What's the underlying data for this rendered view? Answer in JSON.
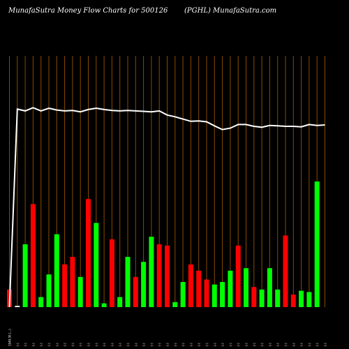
{
  "header": {
    "title_left": "MunafaSutra  Money Flow  Charts for 500126",
    "title_right": "(PGHL) MunafaSutra.com"
  },
  "chart_data": {
    "type": "bar",
    "categories": [
      "Date 1",
      "Date 2",
      "Date 3",
      "Date 4",
      "Date 5",
      "Date 6",
      "Date 7",
      "Date 8",
      "Date 9",
      "Date 10",
      "Date 11",
      "Date 12",
      "Date 13",
      "Date 14",
      "Date 15",
      "Date 16",
      "Date 17",
      "Date 18",
      "Date 19",
      "Date 20",
      "Date 21",
      "Date 22",
      "Date 23",
      "Date 24",
      "Date 25",
      "Date 26",
      "Date 27",
      "Date 28",
      "Date 29",
      "Date 30",
      "Date 31",
      "Date 32",
      "Date 33",
      "Date 34",
      "Date 35",
      "Date 36",
      "Date 37",
      "Date 38",
      "Date 39",
      "Date 40",
      "Date 41"
    ],
    "colors": [
      "red",
      "white",
      "green",
      "red",
      "green",
      "green",
      "green",
      "red",
      "red",
      "green",
      "red",
      "green",
      "green",
      "red",
      "green",
      "green",
      "red",
      "green",
      "green",
      "red",
      "red",
      "green",
      "green",
      "red",
      "red",
      "red",
      "green",
      "green",
      "green",
      "red",
      "green",
      "red",
      "green",
      "green",
      "green",
      "red",
      "red",
      "green",
      "green",
      "green",
      "red"
    ],
    "values": [
      0.07,
      0.005,
      0.25,
      0.41,
      0.04,
      0.13,
      0.29,
      0.17,
      0.2,
      0.12,
      0.43,
      0.335,
      0.015,
      0.27,
      0.04,
      0.2,
      0.12,
      0.18,
      0.28,
      0.25,
      0.245,
      0.02,
      0.1,
      0.17,
      0.145,
      0.11,
      0.09,
      0.1,
      0.145,
      0.245,
      0.155,
      0.08,
      0.07,
      0.155,
      0.07,
      0.285,
      0.05,
      0.065,
      0.06,
      0.5,
      0.0
    ],
    "price_line": [
      0.35,
      0.56,
      0.58,
      0.545,
      0.58,
      0.55,
      0.57,
      0.58,
      0.575,
      0.59,
      0.565,
      0.55,
      0.565,
      0.575,
      0.58,
      0.575,
      0.58,
      0.585,
      0.59,
      0.58,
      0.625,
      0.645,
      0.67,
      0.695,
      0.69,
      0.7,
      0.745,
      0.785,
      0.77,
      0.73,
      0.73,
      0.75,
      0.76,
      0.74,
      0.745,
      0.75,
      0.75,
      0.755,
      0.73,
      0.74,
      0.735
    ],
    "x_labels": [
      "1949.30 (...)",
      "(-)",
      "(-)",
      "(-)",
      "(-)",
      "(-)",
      "(-)",
      "(-)",
      "(-)",
      "(-)",
      "(-)",
      "(-)",
      "(-)",
      "(-)",
      "(-)",
      "(-)",
      "(-)",
      "(-)",
      "(-)",
      "(-)",
      "(-)",
      "(-)",
      "(-)",
      "(-)",
      "(-)",
      "(-)",
      "(-)",
      "(-)",
      "(-)",
      "(-)",
      "(-)",
      "(-)",
      "(-)",
      "(-)",
      "(-)",
      "(-)",
      "(-)",
      "(-)",
      "(-)",
      "(-)",
      "(-)"
    ],
    "ylim": [
      0,
      1
    ]
  }
}
